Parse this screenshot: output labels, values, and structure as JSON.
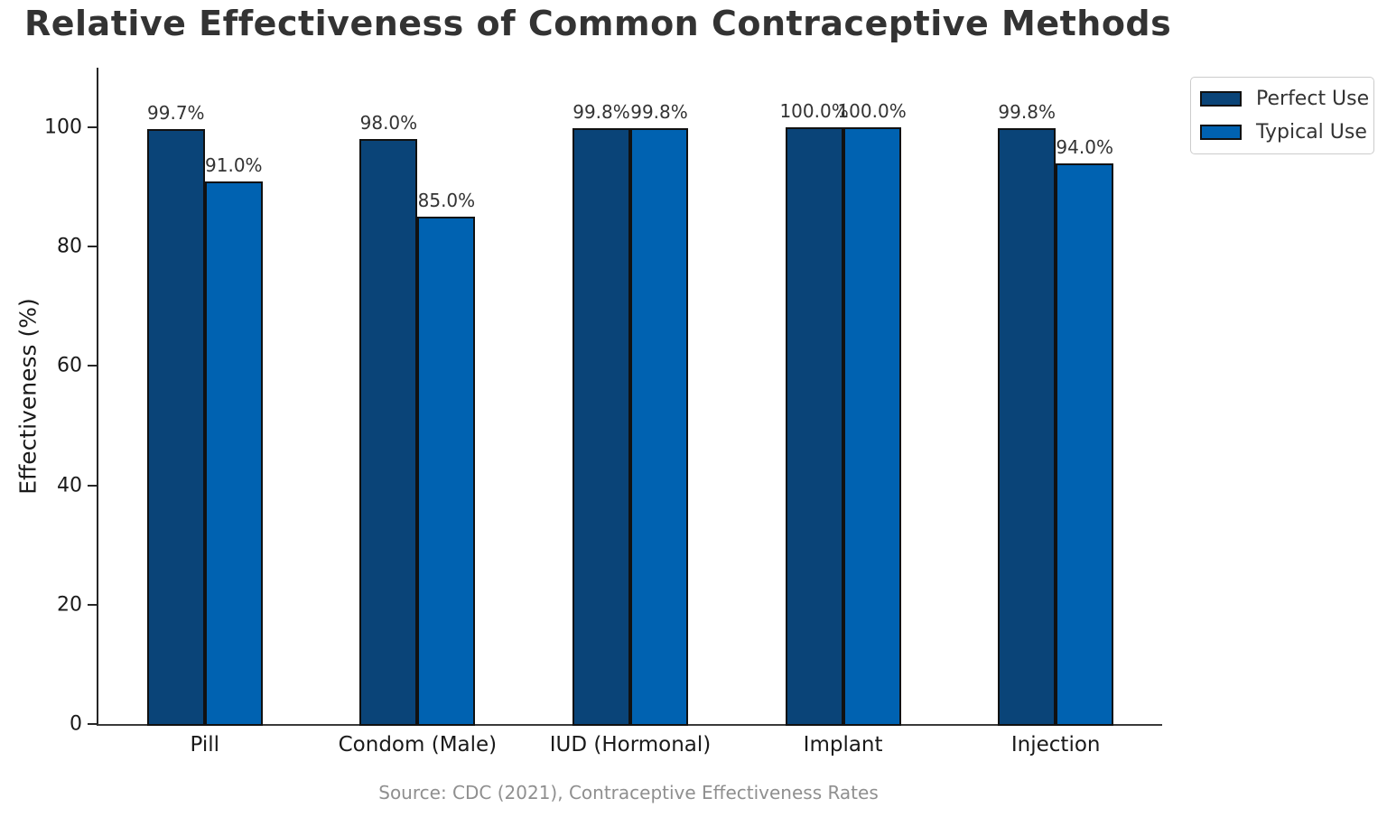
{
  "title": "Relative Effectiveness of Common Contraceptive Methods",
  "source_note": "Source: CDC (2021), Contraceptive Effectiveness Rates",
  "colors": {
    "perfect_use": "#0a4478",
    "typical_use": "#0062b1",
    "bar_edge": "#111111",
    "title_text": "#333333",
    "axis_text": "#1a1a1a",
    "source_text": "#8f8f8f"
  },
  "chart_data": {
    "type": "bar",
    "title": "Relative Effectiveness of Common Contraceptive Methods",
    "categories": [
      "Pill",
      "Condom (Male)",
      "IUD (Hormonal)",
      "Implant",
      "Injection"
    ],
    "series": [
      {
        "name": "Perfect Use",
        "color_key": "perfect_use",
        "values": [
          99.7,
          98.0,
          99.8,
          100.0,
          99.8
        ],
        "value_labels": [
          "99.7%",
          "98.0%",
          "99.8%",
          "100.0%",
          "99.8%"
        ]
      },
      {
        "name": "Typical Use",
        "color_key": "typical_use",
        "values": [
          91.0,
          85.0,
          99.8,
          100.0,
          94.0
        ],
        "value_labels": [
          "91.0%",
          "85.0%",
          "99.8%",
          "100.0%",
          "94.0%"
        ]
      }
    ],
    "xlabel": "",
    "ylabel": "Effectiveness (%)",
    "yticks": [
      0,
      20,
      40,
      60,
      80,
      100
    ],
    "ylim": [
      0,
      110
    ],
    "grid": false,
    "legend_position": "upper right, outside plot"
  }
}
